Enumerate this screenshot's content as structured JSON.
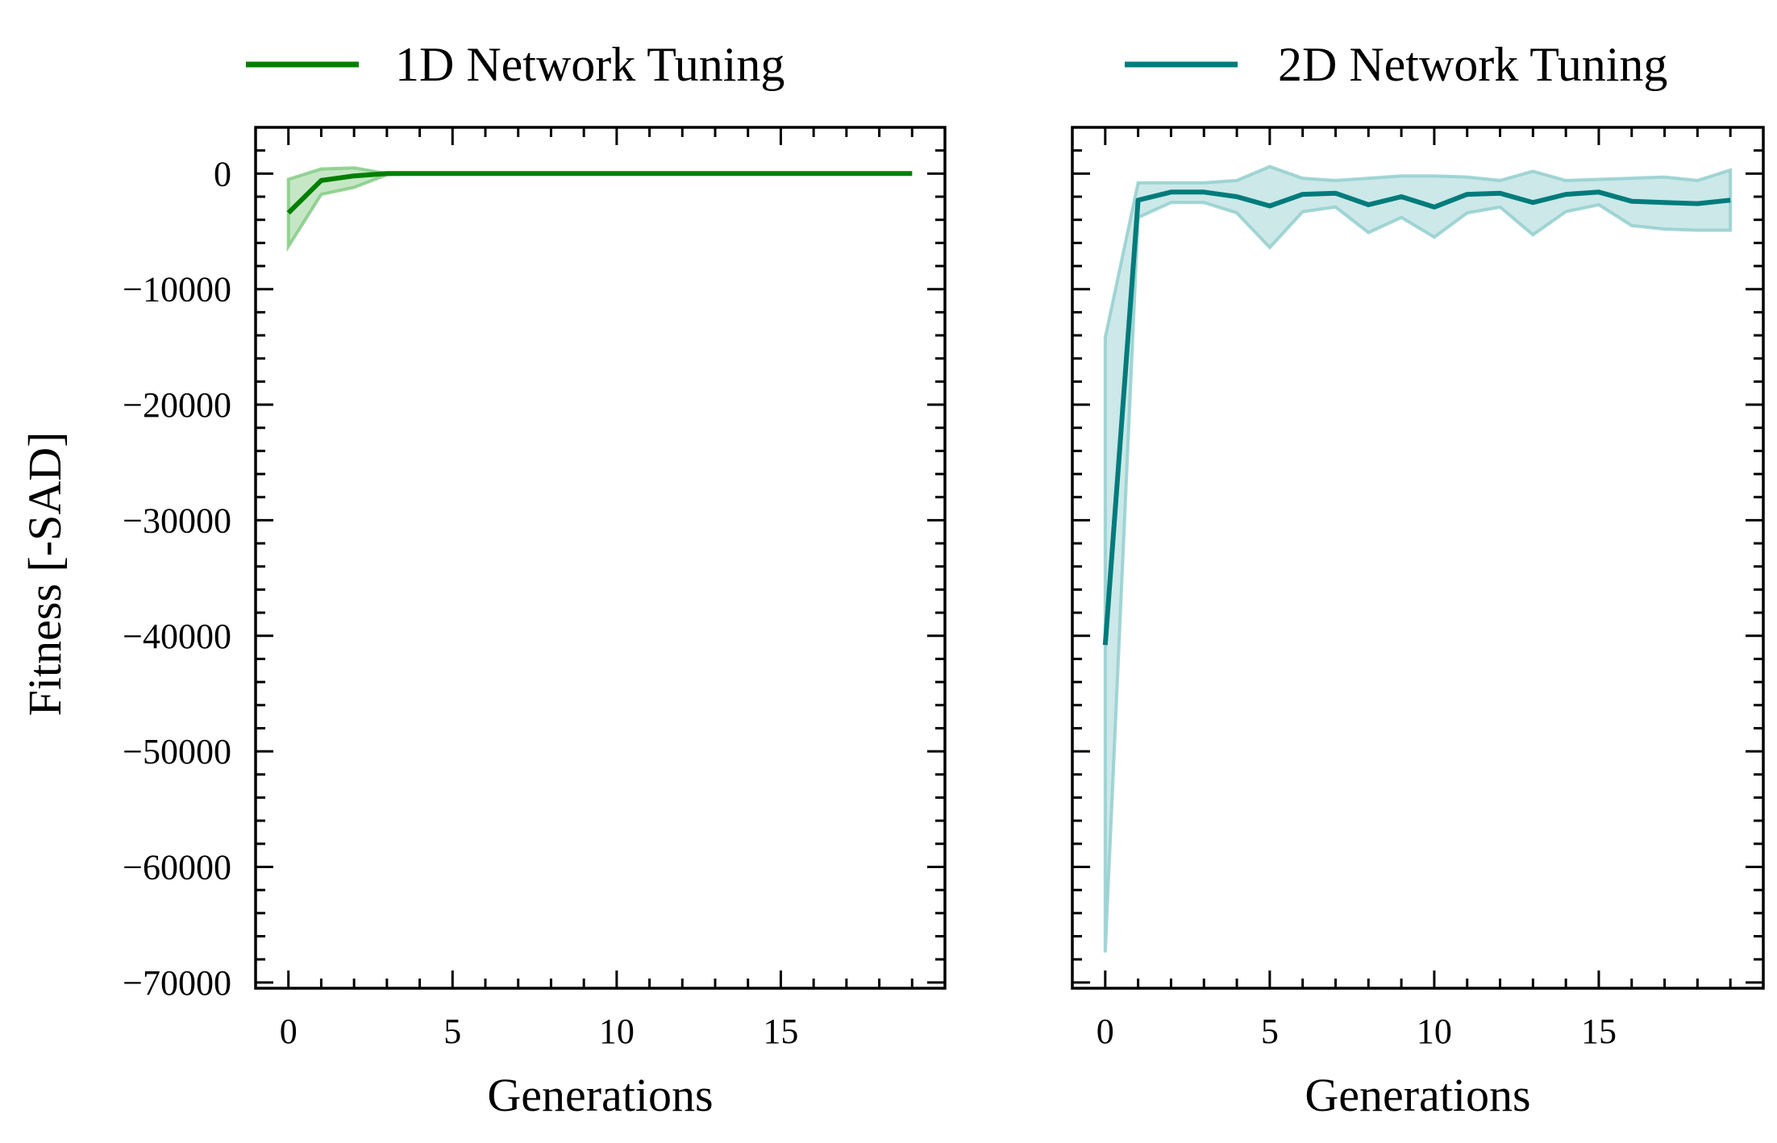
{
  "chart_data": [
    {
      "type": "line",
      "legend": "1D Network Tuning",
      "xlabel": "Generations",
      "ylabel": "Fitness [-SAD]",
      "xlim": [
        -1,
        20
      ],
      "ylim": [
        -70500,
        4000
      ],
      "xticks": [
        "0",
        "5",
        "10",
        "15"
      ],
      "yticks": [
        "0",
        "−10000",
        "−20000",
        "−30000",
        "−40000",
        "−50000",
        "−60000",
        "−70000"
      ],
      "color": "#007f00",
      "band_color": "#7fc97f",
      "legend_position": "top",
      "x": [
        0,
        1,
        2,
        3,
        4,
        5,
        6,
        7,
        8,
        9,
        10,
        11,
        12,
        13,
        14,
        15,
        16,
        17,
        18,
        19
      ],
      "y": [
        -3400,
        -600,
        -200,
        0,
        0,
        0,
        0,
        0,
        0,
        0,
        0,
        0,
        0,
        0,
        0,
        0,
        0,
        0,
        0,
        0
      ],
      "band_upper": [
        -500,
        400,
        500,
        0,
        0,
        0,
        0,
        0,
        0,
        0,
        0,
        0,
        0,
        0,
        0,
        0,
        0,
        0,
        0,
        0
      ],
      "band_lower": [
        -6300,
        -1800,
        -1200,
        -100,
        0,
        0,
        0,
        0,
        0,
        0,
        0,
        0,
        0,
        0,
        0,
        0,
        0,
        0,
        0,
        0
      ]
    },
    {
      "type": "line",
      "legend": "2D Network Tuning",
      "xlabel": "Generations",
      "ylabel": "",
      "xlim": [
        -1,
        20
      ],
      "ylim": [
        -70500,
        4000
      ],
      "xticks": [
        "0",
        "5",
        "10",
        "15"
      ],
      "yticks": [],
      "color": "#007b7b",
      "band_color": "#8fcccc",
      "legend_position": "top",
      "x": [
        0,
        1,
        2,
        3,
        4,
        5,
        6,
        7,
        8,
        9,
        10,
        11,
        12,
        13,
        14,
        15,
        16,
        17,
        18,
        19
      ],
      "y": [
        -40800,
        -2300,
        -1600,
        -1600,
        -2000,
        -2800,
        -1800,
        -1700,
        -2700,
        -2000,
        -2900,
        -1800,
        -1700,
        -2500,
        -1800,
        -1600,
        -2400,
        -2500,
        -2600,
        -2300
      ],
      "band_upper": [
        -14200,
        -800,
        -800,
        -800,
        -600,
        600,
        -400,
        -600,
        -400,
        -200,
        -200,
        -300,
        -600,
        200,
        -600,
        -500,
        -400,
        -300,
        -600,
        300
      ],
      "band_lower": [
        -67400,
        -3800,
        -2500,
        -2500,
        -3400,
        -6400,
        -3300,
        -2900,
        -5100,
        -3800,
        -5500,
        -3400,
        -2900,
        -5300,
        -3300,
        -2700,
        -4500,
        -4800,
        -4900,
        -4900
      ]
    }
  ]
}
